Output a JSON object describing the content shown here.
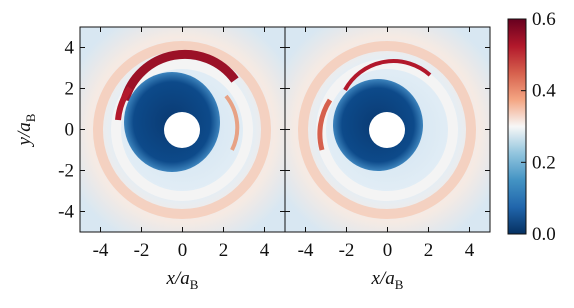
{
  "chart_data": [
    {
      "type": "heatmap",
      "xlim": [
        -5,
        5
      ],
      "ylim": [
        -5,
        5
      ],
      "xticks": [
        -4,
        -2,
        0,
        2,
        4
      ],
      "yticks": [
        -4,
        -2,
        0,
        2,
        4
      ],
      "xlabel": {
        "main": "x/a",
        "sub": "B"
      },
      "ylabel": {
        "main": "y/a",
        "sub": "B"
      }
    },
    {
      "type": "heatmap",
      "xlim": [
        -5,
        5
      ],
      "ylim": [
        -5,
        5
      ],
      "xticks": [
        -4,
        -2,
        0,
        2,
        4
      ],
      "yticks": [
        -4,
        -2,
        0,
        2,
        4
      ],
      "xlabel": {
        "main": "x/a",
        "sub": "B"
      }
    }
  ],
  "colorbar": {
    "lim": [
      0,
      0.6
    ],
    "ticks": [
      {
        "value": 0,
        "label": "0.0"
      },
      0.2,
      0.4,
      0.6
    ],
    "colors": [
      "#053061",
      "#2166ac",
      "#4393c3",
      "#92c5de",
      "#f7f7f7",
      "#f4a582",
      "#d6604d",
      "#b2182b",
      "#67001f"
    ]
  }
}
